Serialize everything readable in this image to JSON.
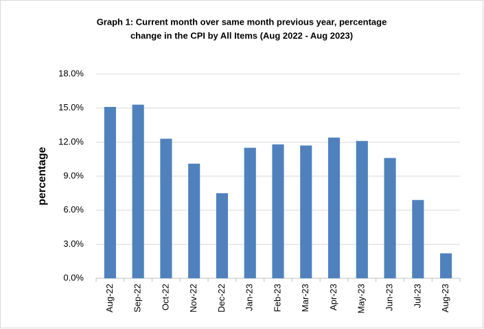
{
  "chart_data": {
    "type": "bar",
    "title": [
      "Graph 1: Current month over same month previous year, percentage",
      "change in the CPI by All Items (Aug 2022 - Aug 2023)"
    ],
    "y_label": "percentage",
    "categories": [
      "Aug-22",
      "Sep-22",
      "Oct-22",
      "Nov-22",
      "Dec-22",
      "Jan-23",
      "Feb-23",
      "Mar-23",
      "Apr-23",
      "May-23",
      "Jun-23",
      "Jul-23",
      "Aug-23"
    ],
    "values": [
      15.1,
      15.3,
      12.3,
      10.1,
      7.5,
      11.5,
      11.8,
      11.7,
      12.4,
      12.1,
      10.6,
      6.9,
      2.2
    ],
    "color": "#4f81bd",
    "ylim": [
      0,
      18
    ],
    "yticks": [
      {
        "value": 0,
        "label": "0.0%"
      },
      {
        "value": 3,
        "label": "3.0%"
      },
      {
        "value": 6,
        "label": "6.0%"
      },
      {
        "value": 9,
        "label": "9.0%"
      },
      {
        "value": 12,
        "label": "12.0%"
      },
      {
        "value": 15,
        "label": "15.0%"
      },
      {
        "value": 18,
        "label": "18.0%"
      }
    ],
    "grid": true
  }
}
